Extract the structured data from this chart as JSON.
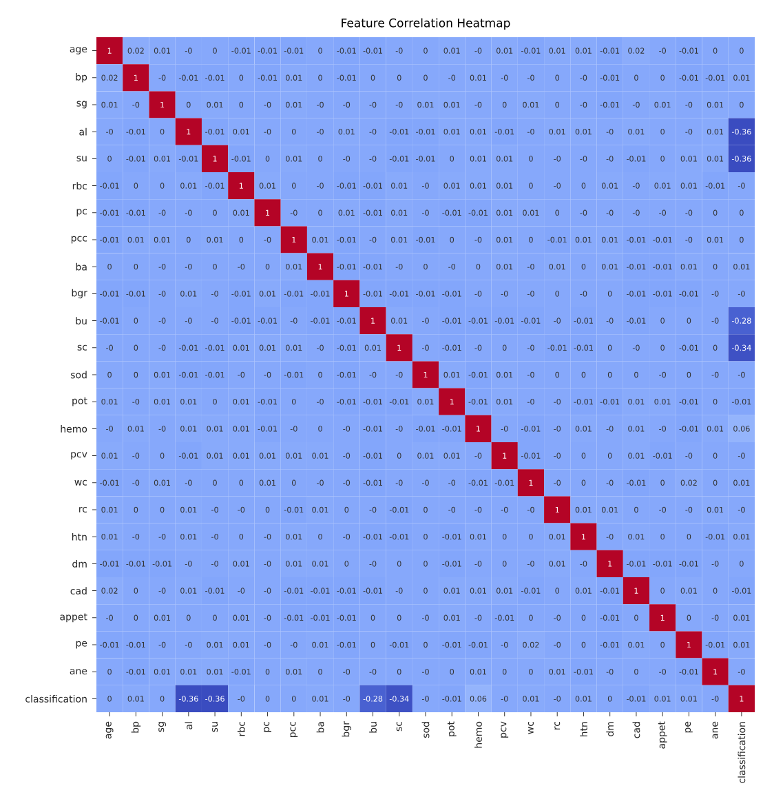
{
  "chart_data": {
    "type": "heatmap",
    "title": "Feature Correlation Heatmap",
    "categories": [
      "age",
      "bp",
      "sg",
      "al",
      "su",
      "rbc",
      "pc",
      "pcc",
      "ba",
      "bgr",
      "bu",
      "sc",
      "sod",
      "pot",
      "hemo",
      "pcv",
      "wc",
      "rc",
      "htn",
      "dm",
      "cad",
      "appet",
      "pe",
      "ane",
      "classification"
    ],
    "y_categories": [
      "age",
      "bp",
      "sg",
      "al",
      "su",
      "rbc",
      "pc",
      "pcc",
      "ba",
      "bgr",
      "bu",
      "sc",
      "sod",
      "pot",
      "hemo",
      "pcv",
      "wc",
      "rc",
      "htn",
      "dm",
      "cad",
      "appet",
      "pe",
      "ane",
      "classification"
    ],
    "cells": [
      [
        1,
        0.02,
        0.01,
        0,
        0,
        -0.01,
        -0.01,
        -0.01,
        0,
        -0.01,
        -0.01,
        0,
        0,
        0.01,
        0,
        0.01,
        -0.01,
        0.01,
        0.01,
        -0.01,
        0.02,
        0,
        -0.01,
        0,
        0
      ],
      [
        0.02,
        1,
        0,
        -0.01,
        -0.01,
        0,
        -0.01,
        0.01,
        0,
        -0.01,
        0,
        0,
        0,
        0,
        0.01,
        0,
        0,
        0,
        0,
        -0.01,
        0,
        0,
        -0.01,
        -0.01,
        0.01
      ],
      [
        0.01,
        0,
        1,
        0,
        0.01,
        0,
        0,
        0.01,
        0,
        0,
        0,
        0,
        0.01,
        0.01,
        0,
        0,
        0.01,
        0,
        0,
        -0.01,
        0,
        0.01,
        0,
        0.01,
        0
      ],
      [
        0,
        -0.01,
        0,
        1,
        -0.01,
        0.01,
        0,
        0,
        0,
        0.01,
        0,
        -0.01,
        -0.01,
        0.01,
        0.01,
        -0.01,
        0,
        0.01,
        0.01,
        0,
        0.01,
        0,
        0,
        0.01,
        -0.36
      ],
      [
        0,
        -0.01,
        0.01,
        -0.01,
        1,
        -0.01,
        0,
        0.01,
        0,
        0,
        0,
        -0.01,
        -0.01,
        0,
        0.01,
        0.01,
        0,
        0,
        0,
        0,
        -0.01,
        0,
        0.01,
        0.01,
        -0.36
      ],
      [
        -0.01,
        0,
        0,
        0.01,
        -0.01,
        1,
        0.01,
        0,
        0,
        -0.01,
        -0.01,
        0.01,
        0,
        0.01,
        0.01,
        0.01,
        0,
        0,
        0,
        0.01,
        0,
        0.01,
        0.01,
        -0.01,
        0
      ],
      [
        -0.01,
        -0.01,
        0,
        0,
        0,
        0.01,
        1,
        0,
        0,
        0.01,
        -0.01,
        0.01,
        0,
        -0.01,
        -0.01,
        0.01,
        0.01,
        0,
        0,
        0,
        0,
        0,
        0,
        0,
        0
      ],
      [
        -0.01,
        0.01,
        0.01,
        0,
        0.01,
        0,
        0,
        1,
        0.01,
        -0.01,
        0,
        0.01,
        -0.01,
        0,
        0,
        0.01,
        0,
        -0.01,
        0.01,
        0.01,
        -0.01,
        -0.01,
        0,
        0.01,
        0
      ],
      [
        0,
        0,
        0,
        0,
        0,
        0,
        0,
        0.01,
        1,
        -0.01,
        -0.01,
        0,
        0,
        0,
        0,
        0.01,
        0,
        0.01,
        0,
        0.01,
        -0.01,
        -0.01,
        0.01,
        0,
        0.01
      ],
      [
        -0.01,
        -0.01,
        0,
        0.01,
        0,
        -0.01,
        0.01,
        -0.01,
        -0.01,
        1,
        -0.01,
        -0.01,
        -0.01,
        -0.01,
        0,
        0,
        0,
        0,
        0,
        0,
        -0.01,
        -0.01,
        -0.01,
        0,
        0
      ],
      [
        -0.01,
        0,
        0,
        0,
        0,
        -0.01,
        -0.01,
        0,
        -0.01,
        -0.01,
        1,
        0.01,
        0,
        -0.01,
        -0.01,
        -0.01,
        -0.01,
        0,
        -0.01,
        0,
        -0.01,
        0,
        0,
        0,
        -0.28
      ],
      [
        0,
        0,
        0,
        -0.01,
        -0.01,
        0.01,
        0.01,
        0.01,
        0,
        -0.01,
        0.01,
        1,
        0,
        -0.01,
        0,
        0,
        0,
        -0.01,
        -0.01,
        0,
        0,
        0,
        -0.01,
        0,
        -0.34
      ],
      [
        0,
        0,
        0.01,
        -0.01,
        -0.01,
        0,
        0,
        -0.01,
        0,
        -0.01,
        0,
        0,
        1,
        0.01,
        -0.01,
        0.01,
        0,
        0,
        0,
        0,
        0,
        0,
        0,
        0,
        0
      ],
      [
        0.01,
        0,
        0.01,
        0.01,
        0,
        0.01,
        -0.01,
        0,
        0,
        -0.01,
        -0.01,
        -0.01,
        0.01,
        1,
        -0.01,
        0.01,
        0,
        0,
        -0.01,
        -0.01,
        0.01,
        0.01,
        -0.01,
        0,
        -0.01
      ],
      [
        0,
        0.01,
        0,
        0.01,
        0.01,
        0.01,
        -0.01,
        0,
        0,
        0,
        -0.01,
        0,
        -0.01,
        -0.01,
        1,
        0,
        -0.01,
        0,
        0.01,
        0,
        0.01,
        0,
        -0.01,
        0.01,
        0.06
      ],
      [
        0.01,
        0,
        0,
        -0.01,
        0.01,
        0.01,
        0.01,
        0.01,
        0.01,
        0,
        -0.01,
        0,
        0.01,
        0.01,
        0,
        1,
        -0.01,
        0,
        0,
        0,
        0.01,
        -0.01,
        0,
        0,
        0
      ],
      [
        -0.01,
        0,
        0.01,
        0,
        0,
        0,
        0.01,
        0,
        0,
        0,
        -0.01,
        0,
        0,
        0,
        -0.01,
        -0.01,
        1,
        0,
        0,
        0,
        -0.01,
        0,
        0.02,
        0,
        0.01
      ],
      [
        0.01,
        0,
        0,
        0.01,
        0,
        0,
        0,
        -0.01,
        0.01,
        0,
        0,
        -0.01,
        0,
        0,
        0,
        0,
        0,
        1,
        0.01,
        0.01,
        0,
        0,
        0,
        0.01,
        0
      ],
      [
        0.01,
        0,
        0,
        0.01,
        0,
        0,
        0,
        0.01,
        0,
        0,
        -0.01,
        -0.01,
        0,
        -0.01,
        0.01,
        0,
        0,
        0.01,
        1,
        0,
        0.01,
        0,
        0,
        -0.01,
        0.01
      ],
      [
        -0.01,
        -0.01,
        -0.01,
        0,
        0,
        0.01,
        0,
        0.01,
        0.01,
        0,
        0,
        0,
        0,
        -0.01,
        0,
        0,
        0,
        0.01,
        0,
        1,
        -0.01,
        -0.01,
        -0.01,
        0,
        0
      ],
      [
        0.02,
        0,
        0,
        0.01,
        -0.01,
        0,
        0,
        -0.01,
        -0.01,
        -0.01,
        -0.01,
        0,
        0,
        0.01,
        0.01,
        0.01,
        -0.01,
        0,
        0.01,
        -0.01,
        1,
        0,
        0.01,
        0,
        -0.01
      ],
      [
        0,
        0,
        0.01,
        0,
        0,
        0.01,
        0,
        -0.01,
        -0.01,
        -0.01,
        0,
        0,
        0,
        0.01,
        0,
        -0.01,
        0,
        0,
        0,
        -0.01,
        0,
        1,
        0,
        0,
        0.01
      ],
      [
        -0.01,
        -0.01,
        0,
        0,
        0.01,
        0.01,
        0,
        0,
        0.01,
        -0.01,
        0,
        -0.01,
        0,
        -0.01,
        -0.01,
        0,
        0.02,
        0,
        0,
        -0.01,
        0.01,
        0,
        1,
        -0.01,
        0.01
      ],
      [
        0,
        -0.01,
        0.01,
        0.01,
        0.01,
        -0.01,
        0,
        0.01,
        0,
        0,
        0,
        0,
        0,
        0,
        0.01,
        0,
        0,
        0.01,
        -0.01,
        0,
        0,
        0,
        -0.01,
        1,
        0
      ],
      [
        0,
        0.01,
        0,
        -0.36,
        -0.36,
        0,
        0,
        0,
        0.01,
        0,
        -0.28,
        -0.34,
        0,
        -0.01,
        0.06,
        0,
        0.01,
        0,
        0.01,
        0,
        -0.01,
        0.01,
        0.01,
        0,
        1
      ]
    ],
    "cell_labels": [
      [
        "1",
        "0.02",
        "0.01",
        "-0",
        "0",
        "-0.01",
        "-0.01",
        "-0.01",
        "0",
        "-0.01",
        "-0.01",
        "-0",
        "0",
        "0.01",
        "-0",
        "0.01",
        "-0.01",
        "0.01",
        "0.01",
        "-0.01",
        "0.02",
        "-0",
        "-0.01",
        "0",
        "0"
      ],
      [
        "0.02",
        "1",
        "-0",
        "-0.01",
        "-0.01",
        "0",
        "-0.01",
        "0.01",
        "0",
        "-0.01",
        "0",
        "0",
        "0",
        "-0",
        "0.01",
        "-0",
        "-0",
        "0",
        "-0",
        "-0.01",
        "0",
        "0",
        "-0.01",
        "-0.01",
        "0.01"
      ],
      [
        "0.01",
        "-0",
        "1",
        "0",
        "0.01",
        "0",
        "-0",
        "0.01",
        "-0",
        "-0",
        "-0",
        "-0",
        "0.01",
        "0.01",
        "-0",
        "0",
        "0.01",
        "0",
        "-0",
        "-0.01",
        "-0",
        "0.01",
        "-0",
        "0.01",
        "0"
      ],
      [
        "-0",
        "-0.01",
        "0",
        "1",
        "-0.01",
        "0.01",
        "-0",
        "0",
        "-0",
        "0.01",
        "-0",
        "-0.01",
        "-0.01",
        "0.01",
        "0.01",
        "-0.01",
        "-0",
        "0.01",
        "0.01",
        "-0",
        "0.01",
        "0",
        "-0",
        "0.01",
        "-0.36"
      ],
      [
        "0",
        "-0.01",
        "0.01",
        "-0.01",
        "1",
        "-0.01",
        "0",
        "0.01",
        "0",
        "-0",
        "-0",
        "-0.01",
        "-0.01",
        "0",
        "0.01",
        "0.01",
        "0",
        "-0",
        "-0",
        "-0",
        "-0.01",
        "0",
        "0.01",
        "0.01",
        "-0.36"
      ],
      [
        "-0.01",
        "0",
        "0",
        "0.01",
        "-0.01",
        "1",
        "0.01",
        "0",
        "-0",
        "-0.01",
        "-0.01",
        "0.01",
        "-0",
        "0.01",
        "0.01",
        "0.01",
        "0",
        "-0",
        "0",
        "0.01",
        "-0",
        "0.01",
        "0.01",
        "-0.01",
        "-0"
      ],
      [
        "-0.01",
        "-0.01",
        "-0",
        "-0",
        "0",
        "0.01",
        "1",
        "-0",
        "0",
        "0.01",
        "-0.01",
        "0.01",
        "-0",
        "-0.01",
        "-0.01",
        "0.01",
        "0.01",
        "0",
        "-0",
        "-0",
        "-0",
        "-0",
        "-0",
        "0",
        "0"
      ],
      [
        "-0.01",
        "0.01",
        "0.01",
        "0",
        "0.01",
        "0",
        "-0",
        "1",
        "0.01",
        "-0.01",
        "-0",
        "0.01",
        "-0.01",
        "0",
        "-0",
        "0.01",
        "0",
        "-0.01",
        "0.01",
        "0.01",
        "-0.01",
        "-0.01",
        "-0",
        "0.01",
        "0"
      ],
      [
        "0",
        "0",
        "-0",
        "-0",
        "0",
        "-0",
        "0",
        "0.01",
        "1",
        "-0.01",
        "-0.01",
        "-0",
        "0",
        "-0",
        "0",
        "0.01",
        "-0",
        "0.01",
        "0",
        "0.01",
        "-0.01",
        "-0.01",
        "0.01",
        "0",
        "0.01"
      ],
      [
        "-0.01",
        "-0.01",
        "-0",
        "0.01",
        "-0",
        "-0.01",
        "0.01",
        "-0.01",
        "-0.01",
        "1",
        "-0.01",
        "-0.01",
        "-0.01",
        "-0.01",
        "-0",
        "-0",
        "-0",
        "0",
        "-0",
        "0",
        "-0.01",
        "-0.01",
        "-0.01",
        "-0",
        "-0"
      ],
      [
        "-0.01",
        "0",
        "-0",
        "-0",
        "-0",
        "-0.01",
        "-0.01",
        "-0",
        "-0.01",
        "-0.01",
        "1",
        "0.01",
        "-0",
        "-0.01",
        "-0.01",
        "-0.01",
        "-0.01",
        "-0",
        "-0.01",
        "-0",
        "-0.01",
        "0",
        "0",
        "-0",
        "-0.28"
      ],
      [
        "-0",
        "0",
        "-0",
        "-0.01",
        "-0.01",
        "0.01",
        "0.01",
        "0.01",
        "-0",
        "-0.01",
        "0.01",
        "1",
        "-0",
        "-0.01",
        "-0",
        "0",
        "-0",
        "-0.01",
        "-0.01",
        "0",
        "-0",
        "0",
        "-0.01",
        "0",
        "-0.34"
      ],
      [
        "0",
        "0",
        "0.01",
        "-0.01",
        "-0.01",
        "-0",
        "-0",
        "-0.01",
        "0",
        "-0.01",
        "-0",
        "-0",
        "1",
        "0.01",
        "-0.01",
        "0.01",
        "-0",
        "0",
        "0",
        "0",
        "0",
        "-0",
        "0",
        "-0",
        "-0"
      ],
      [
        "0.01",
        "-0",
        "0.01",
        "0.01",
        "0",
        "0.01",
        "-0.01",
        "0",
        "-0",
        "-0.01",
        "-0.01",
        "-0.01",
        "0.01",
        "1",
        "-0.01",
        "0.01",
        "-0",
        "-0",
        "-0.01",
        "-0.01",
        "0.01",
        "0.01",
        "-0.01",
        "0",
        "-0.01"
      ],
      [
        "-0",
        "0.01",
        "-0",
        "0.01",
        "0.01",
        "0.01",
        "-0.01",
        "-0",
        "0",
        "-0",
        "-0.01",
        "-0",
        "-0.01",
        "-0.01",
        "1",
        "-0",
        "-0.01",
        "-0",
        "0.01",
        "-0",
        "0.01",
        "-0",
        "-0.01",
        "0.01",
        "0.06"
      ],
      [
        "0.01",
        "-0",
        "0",
        "-0.01",
        "0.01",
        "0.01",
        "0.01",
        "0.01",
        "0.01",
        "-0",
        "-0.01",
        "0",
        "0.01",
        "0.01",
        "-0",
        "1",
        "-0.01",
        "-0",
        "0",
        "0",
        "0.01",
        "-0.01",
        "-0",
        "0",
        "-0"
      ],
      [
        "-0.01",
        "-0",
        "0.01",
        "-0",
        "0",
        "0",
        "0.01",
        "0",
        "-0",
        "-0",
        "-0.01",
        "-0",
        "-0",
        "-0",
        "-0.01",
        "-0.01",
        "1",
        "-0",
        "0",
        "-0",
        "-0.01",
        "0",
        "0.02",
        "0",
        "0.01"
      ],
      [
        "0.01",
        "0",
        "0",
        "0.01",
        "-0",
        "-0",
        "0",
        "-0.01",
        "0.01",
        "0",
        "-0",
        "-0.01",
        "0",
        "-0",
        "-0",
        "-0",
        "-0",
        "1",
        "0.01",
        "0.01",
        "0",
        "-0",
        "-0",
        "0.01",
        "-0"
      ],
      [
        "0.01",
        "-0",
        "-0",
        "0.01",
        "-0",
        "0",
        "-0",
        "0.01",
        "0",
        "-0",
        "-0.01",
        "-0.01",
        "0",
        "-0.01",
        "0.01",
        "0",
        "0",
        "0.01",
        "1",
        "-0",
        "0.01",
        "0",
        "0",
        "-0.01",
        "0.01"
      ],
      [
        "-0.01",
        "-0.01",
        "-0.01",
        "-0",
        "-0",
        "0.01",
        "-0",
        "0.01",
        "0.01",
        "0",
        "-0",
        "0",
        "0",
        "-0.01",
        "-0",
        "0",
        "-0",
        "0.01",
        "-0",
        "1",
        "-0.01",
        "-0.01",
        "-0.01",
        "-0",
        "0"
      ],
      [
        "0.02",
        "0",
        "-0",
        "0.01",
        "-0.01",
        "-0",
        "-0",
        "-0.01",
        "-0.01",
        "-0.01",
        "-0.01",
        "-0",
        "0",
        "0.01",
        "0.01",
        "0.01",
        "-0.01",
        "0",
        "0.01",
        "-0.01",
        "1",
        "0",
        "0.01",
        "0",
        "-0.01"
      ],
      [
        "-0",
        "0",
        "0.01",
        "0",
        "0",
        "0.01",
        "-0",
        "-0.01",
        "-0.01",
        "-0.01",
        "0",
        "0",
        "-0",
        "0.01",
        "-0",
        "-0.01",
        "0",
        "-0",
        "0",
        "-0.01",
        "0",
        "1",
        "0",
        "-0",
        "0.01"
      ],
      [
        "-0.01",
        "-0.01",
        "-0",
        "-0",
        "0.01",
        "0.01",
        "-0",
        "-0",
        "0.01",
        "-0.01",
        "0",
        "-0.01",
        "0",
        "-0.01",
        "-0.01",
        "-0",
        "0.02",
        "-0",
        "0",
        "-0.01",
        "0.01",
        "0",
        "1",
        "-0.01",
        "0.01"
      ],
      [
        "0",
        "-0.01",
        "0.01",
        "0.01",
        "0.01",
        "-0.01",
        "0",
        "0.01",
        "0",
        "-0",
        "-0",
        "0",
        "-0",
        "0",
        "0.01",
        "0",
        "0",
        "0.01",
        "-0.01",
        "-0",
        "0",
        "-0",
        "-0.01",
        "1",
        "-0"
      ],
      [
        "0",
        "0.01",
        "0",
        "-0.36",
        "-0.36",
        "-0",
        "0",
        "0",
        "0.01",
        "-0",
        "-0.28",
        "-0.34",
        "-0",
        "-0.01",
        "0.06",
        "-0",
        "0.01",
        "-0",
        "0.01",
        "0",
        "-0.01",
        "0.01",
        "0.01",
        "-0",
        "1"
      ]
    ]
  }
}
